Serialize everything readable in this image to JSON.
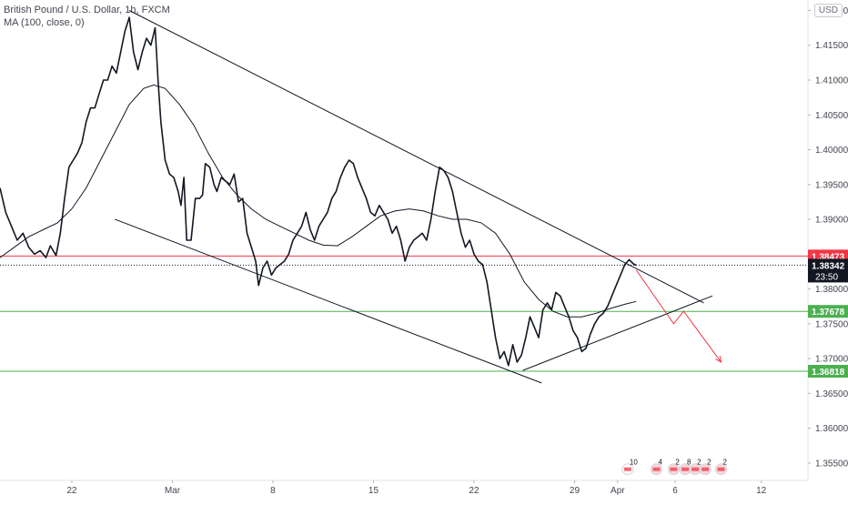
{
  "legend": {
    "title": "British Pound / U.S. Dollar, 1h, FXCM",
    "indicator": "MA (100, close, 0)"
  },
  "currency_button": "USD",
  "chart_data": {
    "type": "line",
    "symbol": "GBPUSD",
    "timeframe": "1h",
    "ylim": [
      1.3525,
      1.4215
    ],
    "y_ticks": [
      "1.42000",
      "1.41500",
      "1.41000",
      "1.40500",
      "1.40000",
      "1.39500",
      "1.39000",
      "1.38500",
      "1.38000",
      "1.37500",
      "1.37000",
      "1.36500",
      "1.36000",
      "1.35500"
    ],
    "x_ticks": [
      {
        "label": "22",
        "day": 22
      },
      {
        "label": "Mar",
        "day": 29
      },
      {
        "label": "8",
        "day": 36
      },
      {
        "label": "15",
        "day": 43
      },
      {
        "label": "22",
        "day": 50
      },
      {
        "label": "29",
        "day": 57
      },
      {
        "label": "Apr",
        "day": 60
      },
      {
        "label": "6",
        "day": 64
      },
      {
        "label": "12",
        "day": 70
      }
    ],
    "price_series": {
      "name": "Close",
      "points": [
        [
          17.0,
          1.3945
        ],
        [
          17.4,
          1.391
        ],
        [
          17.8,
          1.389
        ],
        [
          18.2,
          1.387
        ],
        [
          18.6,
          1.388
        ],
        [
          19.0,
          1.386
        ],
        [
          19.4,
          1.385
        ],
        [
          19.8,
          1.3855
        ],
        [
          20.2,
          1.3845
        ],
        [
          20.5,
          1.3862
        ],
        [
          20.9,
          1.3848
        ],
        [
          21.2,
          1.388
        ],
        [
          21.5,
          1.393
        ],
        [
          21.8,
          1.3975
        ],
        [
          22.1,
          1.3985
        ],
        [
          22.4,
          1.3995
        ],
        [
          22.7,
          1.401
        ],
        [
          23.0,
          1.404
        ],
        [
          23.3,
          1.406
        ],
        [
          23.6,
          1.406
        ],
        [
          23.9,
          1.408
        ],
        [
          24.2,
          1.41
        ],
        [
          24.5,
          1.41
        ],
        [
          24.8,
          1.412
        ],
        [
          25.1,
          1.411
        ],
        [
          25.4,
          1.414
        ],
        [
          25.7,
          1.417
        ],
        [
          26.0,
          1.419
        ],
        [
          26.3,
          1.414
        ],
        [
          26.6,
          1.4115
        ],
        [
          26.9,
          1.414
        ],
        [
          27.2,
          1.416
        ],
        [
          27.5,
          1.415
        ],
        [
          27.8,
          1.4175
        ],
        [
          28.0,
          1.41
        ],
        [
          28.2,
          1.404
        ],
        [
          28.5,
          1.3985
        ],
        [
          28.8,
          1.3965
        ],
        [
          29.1,
          1.396
        ],
        [
          29.4,
          1.394
        ],
        [
          29.6,
          1.392
        ],
        [
          29.8,
          1.396
        ],
        [
          30.0,
          1.387
        ],
        [
          30.3,
          1.387
        ],
        [
          30.6,
          1.393
        ],
        [
          30.9,
          1.393
        ],
        [
          31.1,
          1.3935
        ],
        [
          31.3,
          1.398
        ],
        [
          31.6,
          1.3975
        ],
        [
          31.9,
          1.395
        ],
        [
          32.1,
          1.394
        ],
        [
          32.4,
          1.396
        ],
        [
          32.7,
          1.3955
        ],
        [
          33.0,
          1.395
        ],
        [
          33.3,
          1.3965
        ],
        [
          33.6,
          1.3925
        ],
        [
          33.9,
          1.393
        ],
        [
          34.2,
          1.388
        ],
        [
          34.5,
          1.386
        ],
        [
          34.8,
          1.384
        ],
        [
          35.0,
          1.3805
        ],
        [
          35.3,
          1.383
        ],
        [
          35.6,
          1.384
        ],
        [
          35.9,
          1.382
        ],
        [
          36.2,
          1.383
        ],
        [
          36.5,
          1.3835
        ],
        [
          36.8,
          1.384
        ],
        [
          37.1,
          1.385
        ],
        [
          37.4,
          1.387
        ],
        [
          37.7,
          1.388
        ],
        [
          38.0,
          1.389
        ],
        [
          38.3,
          1.391
        ],
        [
          38.6,
          1.3885
        ],
        [
          38.9,
          1.387
        ],
        [
          39.2,
          1.389
        ],
        [
          39.5,
          1.39
        ],
        [
          39.8,
          1.391
        ],
        [
          40.1,
          1.393
        ],
        [
          40.4,
          1.394
        ],
        [
          40.7,
          1.396
        ],
        [
          41.0,
          1.3975
        ],
        [
          41.3,
          1.3985
        ],
        [
          41.6,
          1.398
        ],
        [
          41.9,
          1.396
        ],
        [
          42.2,
          1.3945
        ],
        [
          42.5,
          1.393
        ],
        [
          42.8,
          1.391
        ],
        [
          43.1,
          1.3905
        ],
        [
          43.4,
          1.392
        ],
        [
          43.7,
          1.391
        ],
        [
          44.0,
          1.39
        ],
        [
          44.3,
          1.388
        ],
        [
          44.6,
          1.389
        ],
        [
          44.9,
          1.387
        ],
        [
          45.2,
          1.384
        ],
        [
          45.5,
          1.386
        ],
        [
          45.8,
          1.387
        ],
        [
          46.1,
          1.3875
        ],
        [
          46.4,
          1.388
        ],
        [
          46.7,
          1.387
        ],
        [
          47.0,
          1.39
        ],
        [
          47.3,
          1.394
        ],
        [
          47.6,
          1.3975
        ],
        [
          47.9,
          1.397
        ],
        [
          48.2,
          1.396
        ],
        [
          48.5,
          1.394
        ],
        [
          48.8,
          1.391
        ],
        [
          49.1,
          1.388
        ],
        [
          49.4,
          1.386
        ],
        [
          49.7,
          1.387
        ],
        [
          50.0,
          1.385
        ],
        [
          50.3,
          1.384
        ],
        [
          50.6,
          1.3835
        ],
        [
          50.9,
          1.381
        ],
        [
          51.2,
          1.377
        ],
        [
          51.5,
          1.373
        ],
        [
          51.8,
          1.37
        ],
        [
          52.1,
          1.371
        ],
        [
          52.4,
          1.369
        ],
        [
          52.7,
          1.372
        ],
        [
          53.0,
          1.3695
        ],
        [
          53.3,
          1.3705
        ],
        [
          53.6,
          1.373
        ],
        [
          53.9,
          1.376
        ],
        [
          54.2,
          1.3745
        ],
        [
          54.5,
          1.373
        ],
        [
          54.8,
          1.377
        ],
        [
          55.1,
          1.378
        ],
        [
          55.4,
          1.377
        ],
        [
          55.7,
          1.3795
        ],
        [
          56.0,
          1.379
        ],
        [
          56.3,
          1.3775
        ],
        [
          56.6,
          1.376
        ],
        [
          56.9,
          1.374
        ],
        [
          57.2,
          1.373
        ],
        [
          57.5,
          1.371
        ],
        [
          57.8,
          1.3715
        ],
        [
          58.1,
          1.3735
        ],
        [
          58.4,
          1.375
        ],
        [
          58.7,
          1.376
        ],
        [
          59.0,
          1.3765
        ],
        [
          59.3,
          1.3775
        ],
        [
          59.6,
          1.379
        ],
        [
          59.9,
          1.3805
        ],
        [
          60.2,
          1.382
        ],
        [
          60.5,
          1.3835
        ],
        [
          60.8,
          1.3842
        ],
        [
          61.1,
          1.3836
        ],
        [
          61.3,
          1.3834
        ]
      ]
    },
    "ma_series": {
      "name": "MA (100, close, 0)",
      "points": [
        [
          17.0,
          1.3845
        ],
        [
          18.0,
          1.386
        ],
        [
          19.0,
          1.3875
        ],
        [
          20.0,
          1.3885
        ],
        [
          21.0,
          1.3895
        ],
        [
          22.0,
          1.3915
        ],
        [
          23.0,
          1.3945
        ],
        [
          24.0,
          1.3985
        ],
        [
          25.0,
          1.4025
        ],
        [
          26.0,
          1.4065
        ],
        [
          27.0,
          1.4088
        ],
        [
          27.7,
          1.4093
        ],
        [
          28.5,
          1.4088
        ],
        [
          29.5,
          1.4065
        ],
        [
          30.5,
          1.4035
        ],
        [
          31.5,
          1.3995
        ],
        [
          32.5,
          1.396
        ],
        [
          33.5,
          1.3935
        ],
        [
          34.5,
          1.3915
        ],
        [
          35.5,
          1.39
        ],
        [
          36.5,
          1.389
        ],
        [
          37.5,
          1.388
        ],
        [
          38.5,
          1.387
        ],
        [
          39.5,
          1.3863
        ],
        [
          40.5,
          1.3862
        ],
        [
          41.5,
          1.3875
        ],
        [
          42.5,
          1.389
        ],
        [
          43.5,
          1.3905
        ],
        [
          44.5,
          1.3912
        ],
        [
          45.5,
          1.3915
        ],
        [
          46.5,
          1.3912
        ],
        [
          47.5,
          1.3905
        ],
        [
          48.5,
          1.39
        ],
        [
          49.5,
          1.39
        ],
        [
          50.5,
          1.3895
        ],
        [
          51.5,
          1.388
        ],
        [
          52.5,
          1.385
        ],
        [
          53.5,
          1.381
        ],
        [
          54.5,
          1.3785
        ],
        [
          55.5,
          1.3768
        ],
        [
          56.5,
          1.376
        ],
        [
          57.5,
          1.376
        ],
        [
          58.5,
          1.3765
        ],
        [
          59.5,
          1.3772
        ],
        [
          60.5,
          1.3778
        ],
        [
          61.3,
          1.3782
        ]
      ]
    },
    "horizontal_levels": [
      {
        "label": "1.38473",
        "value": 1.38473,
        "color": "#f23645"
      },
      {
        "label": "1.37678",
        "value": 1.37678,
        "color": "#4caf50"
      },
      {
        "label": "1.36818",
        "value": 1.36818,
        "color": "#4caf50"
      }
    ],
    "current_price": {
      "label": "1.38342",
      "value": 1.38342,
      "countdown": "23:50",
      "color": "#131722"
    },
    "trendlines": [
      {
        "points": [
          [
            26.0,
            1.42
          ],
          [
            66.0,
            1.378
          ]
        ],
        "color": "#131722"
      },
      {
        "points": [
          [
            25.0,
            1.39
          ],
          [
            54.7,
            1.3665
          ]
        ],
        "color": "#131722"
      },
      {
        "points": [
          [
            53.4,
            1.3683
          ],
          [
            66.6,
            1.379
          ]
        ],
        "color": "#131722"
      }
    ],
    "projection": {
      "color": "#f23645",
      "points": [
        [
          61.3,
          1.3827
        ],
        [
          63.9,
          1.375
        ],
        [
          64.6,
          1.3768
        ],
        [
          67.2,
          1.3695
        ]
      ]
    },
    "event_markers": {
      "y": 1.3545,
      "items": [
        {
          "day": 60.7,
          "label": "10"
        },
        {
          "day": 62.7,
          "label": "4"
        },
        {
          "day": 63.9,
          "label": "2"
        },
        {
          "day": 64.7,
          "label": "8"
        },
        {
          "day": 65.4,
          "label": "2"
        },
        {
          "day": 66.1,
          "label": "2"
        },
        {
          "day": 67.2,
          "label": "2"
        }
      ]
    },
    "colors": {
      "price": "#131722",
      "ma": "#131722",
      "axis_text": "#434651",
      "grid": "#f0f3fa"
    },
    "grid": false
  }
}
